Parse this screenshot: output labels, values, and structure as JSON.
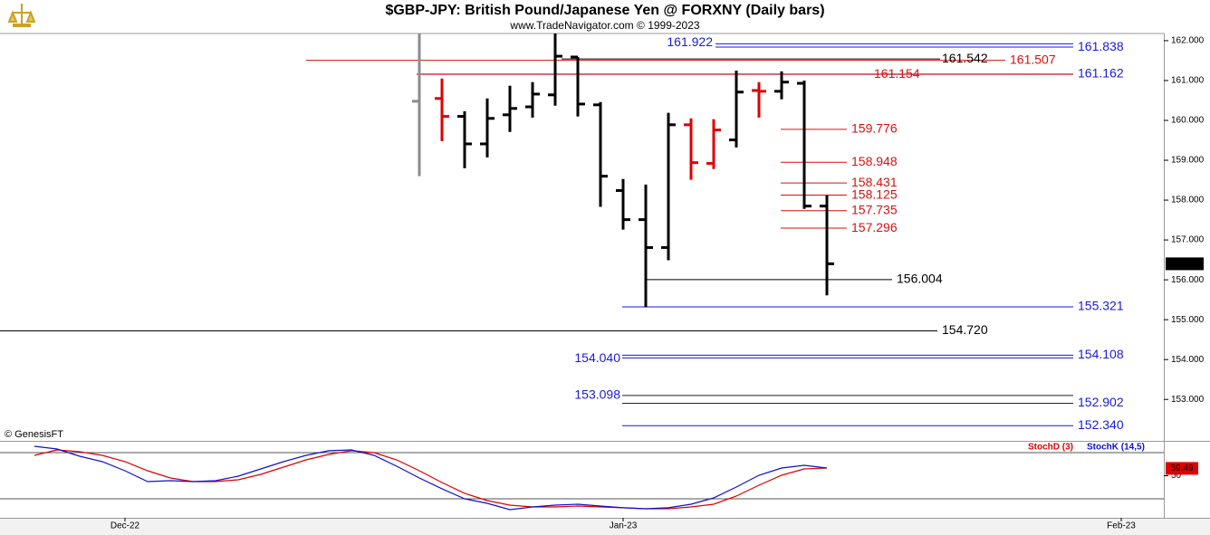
{
  "chart_data": [
    {
      "type": "ohlc",
      "title": "$GBP-JPY:  British Pound/Japanese Yen @ FORXNY  (Daily bars)",
      "subtitle": "www.TradeNavigator.com © 1999-2023",
      "watermark": "© GenesisFT",
      "xlim": [
        -5.52,
        45.88
      ],
      "ylim": [
        151.96,
        162.18
      ],
      "yticks": [
        {
          "value": 153,
          "label": "153.000"
        },
        {
          "value": 154,
          "label": "154.000"
        },
        {
          "value": 155,
          "label": "155.000"
        },
        {
          "value": 156,
          "label": "156.000"
        },
        {
          "value": 157,
          "label": "157.000"
        },
        {
          "value": 158,
          "label": "158.000"
        },
        {
          "value": 159,
          "label": "159.000"
        },
        {
          "value": 160,
          "label": "160.000"
        },
        {
          "value": 161,
          "label": "161.000"
        },
        {
          "value": 162,
          "label": "162.000"
        }
      ],
      "x": [
        13,
        14,
        15,
        16,
        17,
        18,
        19,
        20,
        21,
        22,
        23,
        24,
        25,
        26,
        27,
        28,
        29,
        30,
        31
      ],
      "open": [
        160.48,
        160.55,
        160.1,
        159.41,
        160.14,
        160.34,
        160.64,
        161.59,
        160.39,
        158.24,
        157.51,
        156.81,
        159.89,
        158.92,
        159.51,
        160.75,
        160.73,
        160.93,
        157.85
      ],
      "high": [
        162.18,
        161.05,
        160.23,
        160.55,
        160.87,
        160.96,
        162.18,
        161.59,
        160.46,
        158.53,
        158.39,
        160.19,
        160.05,
        160.03,
        161.25,
        160.96,
        161.23,
        161.0,
        158.12
      ],
      "low": [
        158.6,
        159.48,
        158.8,
        159.07,
        159.71,
        160.07,
        160.37,
        160.1,
        157.83,
        157.26,
        155.31,
        156.49,
        158.51,
        158.78,
        159.32,
        160.07,
        160.53,
        157.78,
        155.61
      ],
      "close": [
        null,
        160.1,
        159.41,
        160.05,
        160.3,
        160.66,
        161.61,
        160.41,
        158.6,
        157.51,
        156.81,
        159.89,
        158.94,
        159.76,
        160.71,
        160.73,
        160.96,
        157.85,
        156.402
      ],
      "colors": [
        "#8c8c8c",
        "#e00000",
        "#000000",
        "#000000",
        "#000000",
        "#000000",
        "#000000",
        "#000000",
        "#000000",
        "#000000",
        "#000000",
        "#000000",
        "#e00000",
        "#e00000",
        "#000000",
        "#e00000",
        "#000000",
        "#000000",
        "#000000"
      ],
      "current_value": 156.402,
      "levels": [
        {
          "value": 161.922,
          "label": "161.922",
          "color": "#1a1adc",
          "label_color": "#1a1adc"
        },
        {
          "value": 161.838,
          "label": "161.838",
          "color": "#1a1adc",
          "label_color": "#1a1adc"
        },
        {
          "value": 161.542,
          "label": "161.542",
          "color": "#000000",
          "label_color": "#000000"
        },
        {
          "value": 161.507,
          "label": "161.507",
          "color": "#d81010",
          "label_color": "#d81010"
        },
        {
          "value": 161.162,
          "label": "161.162",
          "color": "#1a1adc",
          "label_color": "#1a1adc"
        },
        {
          "value": 161.154,
          "label": "161.154",
          "color": "#d81010",
          "label_color": "#d81010"
        },
        {
          "value": 159.776,
          "label": "159.776",
          "color": "#d81010",
          "label_color": "#d81010"
        },
        {
          "value": 158.948,
          "label": "158.948",
          "color": "#d81010",
          "label_color": "#d81010"
        },
        {
          "value": 158.431,
          "label": "158.431",
          "color": "#d81010",
          "label_color": "#d81010"
        },
        {
          "value": 158.125,
          "label": "158.125",
          "color": "#d81010",
          "label_color": "#d81010"
        },
        {
          "value": 157.735,
          "label": "157.735",
          "color": "#d81010",
          "label_color": "#d81010"
        },
        {
          "value": 157.296,
          "label": "157.296",
          "color": "#d81010",
          "label_color": "#d81010"
        },
        {
          "value": 156.004,
          "label": "156.004",
          "color": "#000000",
          "label_color": "#000000"
        },
        {
          "value": 155.321,
          "label": "155.321",
          "color": "#1a1adc",
          "label_color": "#1a1adc"
        },
        {
          "value": 154.72,
          "label": "154.720",
          "color": "#000000",
          "label_color": "#000000"
        },
        {
          "value": 154.108,
          "label": "154.108",
          "color": "#1a1adc",
          "label_color": "#1a1adc"
        },
        {
          "value": 154.04,
          "label": "154.040",
          "color": "#1a1adc",
          "label_color": "#1a1adc"
        },
        {
          "value": 153.098,
          "label": "153.098",
          "color": "#222222",
          "label_color": "#1a1adc"
        },
        {
          "value": 152.902,
          "label": "152.902",
          "color": "#222222",
          "label_color": "#1a1adc"
        },
        {
          "value": 152.34,
          "label": "152.340",
          "color": "#1a1adc",
          "label_color": "#1a1adc"
        }
      ]
    },
    {
      "type": "line",
      "xlim": [
        -5.52,
        45.88
      ],
      "xticks": [
        {
          "value": 0,
          "label": "Dec-22"
        },
        {
          "value": 22,
          "label": "Jan-23"
        },
        {
          "value": 44,
          "label": "Feb-23"
        }
      ],
      "ylim": [
        -4.7,
        94.1
      ],
      "yticks": [
        50
      ],
      "hlines": [
        80,
        20
      ],
      "current_value": 59.49,
      "x": [
        -4,
        -3,
        -2,
        -1,
        0,
        1,
        2,
        3,
        4,
        5,
        6,
        7,
        8,
        9,
        10,
        11,
        12,
        13,
        14,
        15,
        16,
        17,
        18,
        19,
        20,
        21,
        22,
        23,
        24,
        25,
        26,
        27,
        28,
        29,
        30,
        31
      ],
      "series": [
        {
          "name": "StochD (3)",
          "color": "#e00000",
          "values": [
            76.5,
            83.5,
            81.2,
            76.5,
            68.2,
            56.5,
            47.1,
            42.4,
            42.4,
            44.7,
            51.8,
            61.2,
            70.6,
            77.6,
            82.4,
            80,
            70.6,
            56.5,
            41.2,
            27.1,
            17.7,
            11.8,
            9.4,
            9.4,
            10.6,
            9.4,
            8.3,
            7.1,
            7.1,
            9.4,
            13.0,
            23.5,
            37.7,
            50.6,
            58.8,
            60.0
          ]
        },
        {
          "name": "StochK (14,5)",
          "color": "#1010d0",
          "values": [
            88.2,
            84.7,
            75.3,
            68.2,
            56.5,
            42.4,
            43.5,
            42.4,
            43.5,
            49.4,
            58.8,
            68.2,
            76.5,
            82.4,
            83.5,
            76.5,
            62.4,
            47.1,
            33.0,
            20.0,
            14.1,
            5.9,
            9.4,
            11.8,
            13.0,
            10.6,
            8.3,
            7.1,
            8.3,
            13.0,
            21.2,
            35.3,
            50.6,
            60.0,
            63.5,
            60.0
          ]
        }
      ]
    }
  ]
}
